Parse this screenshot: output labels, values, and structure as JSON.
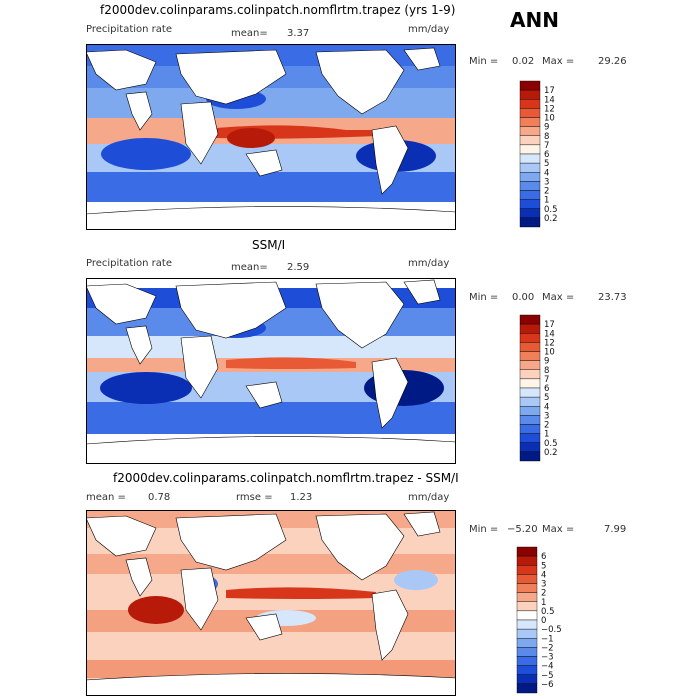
{
  "season": "ANN",
  "panels": [
    {
      "title": "f2000dev.colinparams.colinpatch.nomflrtm.trapez (yrs 1-9)",
      "left_label": "Precipitation rate",
      "mid_label": "mean=",
      "mid_value": "3.37",
      "units": "mm/day",
      "min_label": "Min =",
      "min_value": "0.02",
      "max_label": "Max =",
      "max_value": "29.26",
      "colorbar": [
        "17",
        "14",
        "12",
        "10",
        "9",
        "8",
        "7",
        "6",
        "5",
        "4",
        "3",
        "2",
        "1",
        "0.5",
        "0.2"
      ]
    },
    {
      "title": "SSM/I",
      "left_label": "Precipitation rate",
      "mid_label": "mean=",
      "mid_value": "2.59",
      "units": "mm/day",
      "min_label": "Min =",
      "min_value": "0.00",
      "max_label": "Max =",
      "max_value": "23.73",
      "colorbar": [
        "17",
        "14",
        "12",
        "10",
        "9",
        "8",
        "7",
        "6",
        "5",
        "4",
        "3",
        "2",
        "1",
        "0.5",
        "0.2"
      ]
    },
    {
      "title": "f2000dev.colinparams.colinpatch.nomflrtm.trapez - SSM/I",
      "left_label": "mean =",
      "left_value": "0.78",
      "mid_label": "rmse =",
      "mid_value": "1.23",
      "units": "mm/day",
      "min_label": "Min =",
      "min_value": "−5.20",
      "max_label": "Max =",
      "max_value": "7.99",
      "colorbar": [
        "6",
        "5",
        "4",
        "3",
        "2",
        "1",
        "0.5",
        "0",
        "−0.5",
        "−1",
        "−2",
        "−3",
        "−4",
        "−5",
        "−6"
      ]
    }
  ],
  "chart_data": [
    {
      "type": "heatmap",
      "title": "f2000dev.colinparams.colinpatch.nomflrtm.trapez (yrs 1-9)",
      "field": "Precipitation rate",
      "units": "mm/day",
      "mean": 3.37,
      "min": 0.02,
      "max": 29.26,
      "levels": [
        0.2,
        0.5,
        1,
        2,
        3,
        4,
        5,
        6,
        7,
        8,
        9,
        10,
        12,
        14,
        17
      ]
    },
    {
      "type": "heatmap",
      "title": "SSM/I",
      "field": "Precipitation rate",
      "units": "mm/day",
      "mean": 2.59,
      "min": 0.0,
      "max": 23.73,
      "levels": [
        0.2,
        0.5,
        1,
        2,
        3,
        4,
        5,
        6,
        7,
        8,
        9,
        10,
        12,
        14,
        17
      ]
    },
    {
      "type": "heatmap",
      "title": "f2000dev.colinparams.colinpatch.nomflrtm.trapez - SSM/I",
      "units": "mm/day",
      "mean": 0.78,
      "rmse": 1.23,
      "min": -5.2,
      "max": 7.99,
      "levels": [
        -6,
        -5,
        -4,
        -3,
        -2,
        -1,
        -0.5,
        0,
        0.5,
        1,
        2,
        3,
        4,
        5,
        6
      ]
    }
  ],
  "colors": {
    "scale_abs": [
      "#8b0000",
      "#b81a0a",
      "#d8361a",
      "#e85a35",
      "#f0805a",
      "#f6a88a",
      "#fbd2bd",
      "#fff4e8",
      "#d6e6fb",
      "#aac8f5",
      "#7ea9ef",
      "#5a8aea",
      "#3a6de5",
      "#1e4ed8",
      "#0a2fb4",
      "#001a85"
    ],
    "scale_diff": [
      "#8b0000",
      "#b81a0a",
      "#d8361a",
      "#e85a35",
      "#f0805a",
      "#f6a88a",
      "#fbd2bd",
      "#ffffff",
      "#d6e6fb",
      "#aac8f5",
      "#7ea9ef",
      "#5a8aea",
      "#3a6de5",
      "#1e4ed8",
      "#0a2fb4",
      "#001a85"
    ],
    "land": "#ffffff"
  }
}
